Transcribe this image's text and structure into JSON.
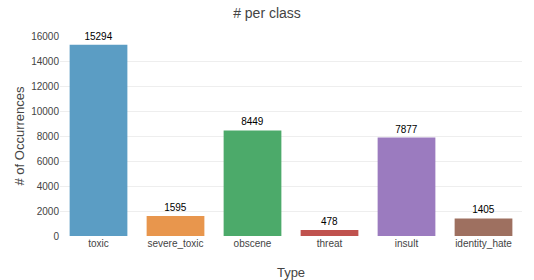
{
  "chart_data": {
    "type": "bar",
    "title": "# per class",
    "xlabel": "Type",
    "ylabel": "# of Occurrences",
    "categories": [
      "toxic",
      "severe_toxic",
      "obscene",
      "threat",
      "insult",
      "identity_hate"
    ],
    "values": [
      15294,
      1595,
      8449,
      478,
      7877,
      1405
    ],
    "colors": [
      "#5b9dc4",
      "#e8964d",
      "#4caa6a",
      "#c0524e",
      "#9b7bbf",
      "#9e7060"
    ],
    "ylim": [
      0,
      16000
    ],
    "yticks": [
      0,
      2000,
      4000,
      6000,
      8000,
      10000,
      12000,
      14000,
      16000
    ],
    "grid": true,
    "data_labels": true
  }
}
